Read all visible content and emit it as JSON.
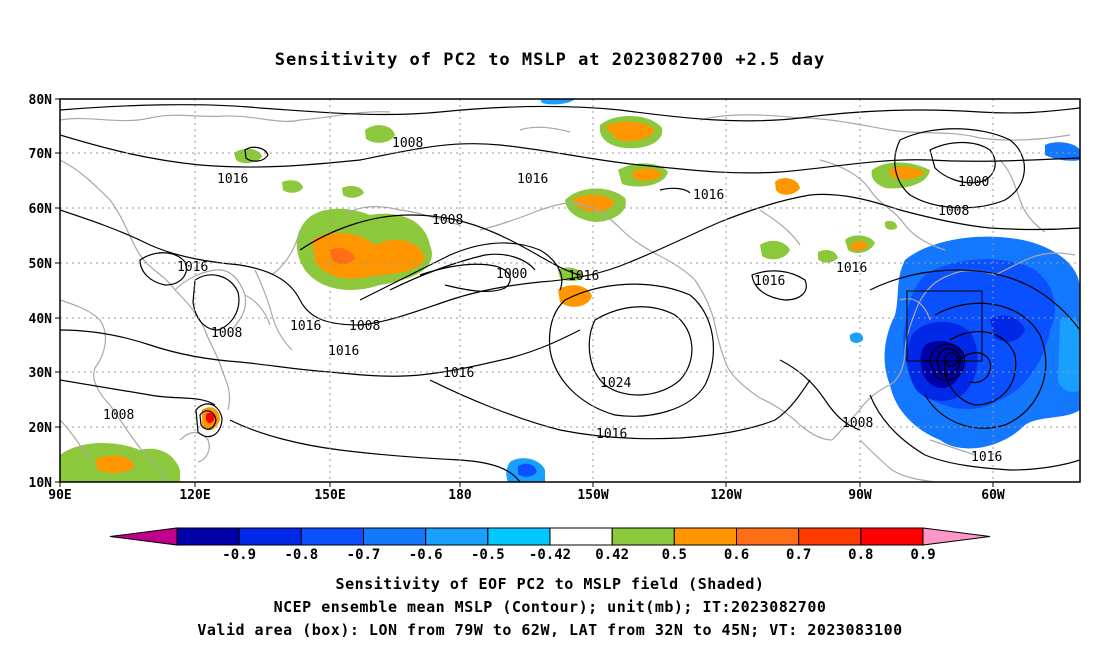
{
  "title": "Sensitivity of PC2 to MSLP at 2023082700 +2.5 day",
  "lat_labels": [
    "80N",
    "70N",
    "60N",
    "50N",
    "40N",
    "30N",
    "20N",
    "10N"
  ],
  "lon_labels": [
    "90E",
    "120E",
    "150E",
    "180",
    "150W",
    "120W",
    "90W",
    "60W"
  ],
  "contour_labels": [
    "1008",
    "1016",
    "1016",
    "1000",
    "1008",
    "1016",
    "1000",
    "1008",
    "1016",
    "1016",
    "1016",
    "1016",
    "1008",
    "1008",
    "1016",
    "1016",
    "1024",
    "1016",
    "1008",
    "1008",
    "1016",
    "1016"
  ],
  "colorbar": {
    "labels": [
      "-0.9",
      "-0.8",
      "-0.7",
      "-0.6",
      "-0.5",
      "-0.42",
      "0.42",
      "0.5",
      "0.6",
      "0.7",
      "0.8",
      "0.9"
    ],
    "colors": [
      "#c0008c",
      "#0000a8",
      "#0028e6",
      "#0a50ff",
      "#1478ff",
      "#19a0ff",
      "#00c8ff",
      "#ffffff",
      "#8cc83c",
      "#ff9600",
      "#ff6e14",
      "#ff3c00",
      "#ff0000",
      "#ff96c8"
    ]
  },
  "footer": {
    "line1": "Sensitivity of EOF PC2 to MSLP field (Shaded)",
    "line2": "NCEP ensemble mean MSLP (Contour); unit(mb); IT:2023082700",
    "line3": "Valid area (box): LON from 79W to 62W, LAT from 32N to 45N; VT: 2023083100"
  }
}
